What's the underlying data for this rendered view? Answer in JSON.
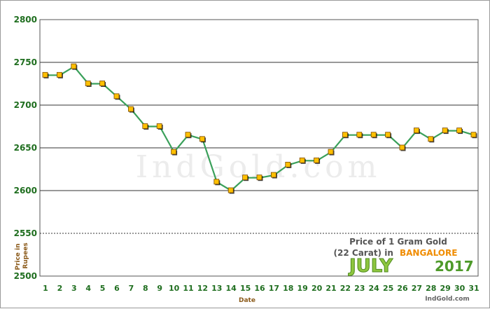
{
  "chart_data": {
    "type": "line",
    "title_line1": "Price of 1 Gram Gold",
    "title_line2_pre": "(22 Carat) in",
    "city": "BANGALORE",
    "month": "JULY",
    "year": "2017",
    "site": "IndGold.com",
    "watermark": "IndGold.com",
    "xlabel": "Date",
    "ylabel": "Price in Rupees",
    "ylim": [
      2500,
      2800
    ],
    "yticks": [
      2500,
      2550,
      2600,
      2650,
      2700,
      2750,
      2800
    ],
    "x": [
      1,
      2,
      3,
      4,
      5,
      6,
      7,
      8,
      9,
      10,
      11,
      12,
      13,
      14,
      15,
      16,
      17,
      18,
      19,
      20,
      21,
      22,
      23,
      24,
      25,
      26,
      27,
      28,
      29,
      30,
      31
    ],
    "series": [
      {
        "values": [
          2735,
          2735,
          2745,
          2725,
          2725,
          2710,
          2695,
          2675,
          2675,
          2645,
          2665,
          2660,
          2610,
          2600,
          2615,
          2615,
          2618,
          2630,
          2635,
          2635,
          2645,
          2665,
          2665,
          2665,
          2665,
          2650,
          2670,
          2660,
          2670,
          2670,
          2665
        ]
      }
    ],
    "grid": true,
    "colors": {
      "line": "#3aa05a",
      "marker_fill": "#ffc000",
      "marker_edge": "#7a4a00",
      "tick_text": "#1f6e1f",
      "grid": "#333333"
    }
  }
}
